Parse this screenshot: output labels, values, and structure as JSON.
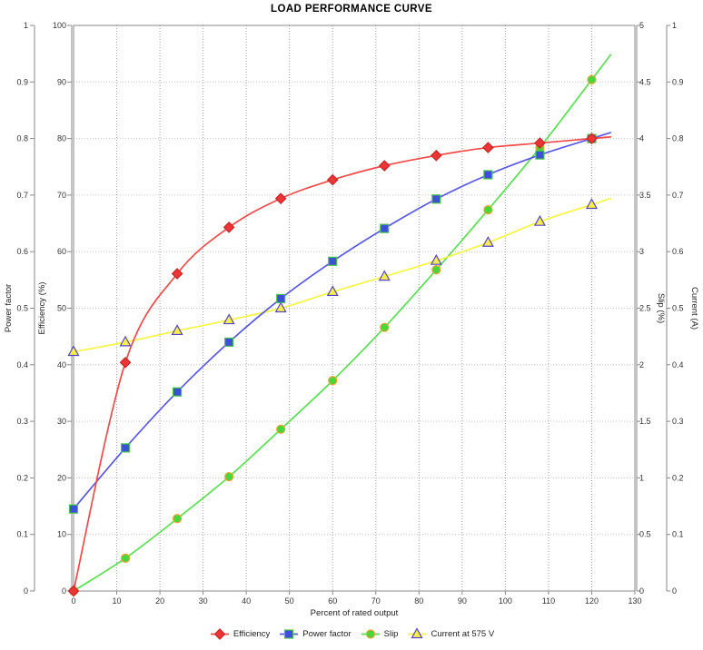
{
  "title": "LOAD PERFORMANCE CURVE",
  "chart_data": {
    "type": "line",
    "title": "LOAD PERFORMANCE CURVE",
    "xlabel": "Percent of rated output",
    "grid": true,
    "legend_position": "bottom",
    "x": [
      0,
      12,
      24,
      36,
      48,
      60,
      72,
      84,
      96,
      108,
      120
    ],
    "axes": {
      "x": {
        "label": "Percent of rated output",
        "min": 0,
        "max": 130,
        "tick_step": 10
      },
      "left_outer": {
        "label": "Power factor",
        "min": 0,
        "max": 1,
        "tick_step": 0.1
      },
      "left_inner": {
        "label": "Efficiency (%)",
        "min": 0,
        "max": 100,
        "tick_step": 10
      },
      "right_inner": {
        "label": "Slip (%)",
        "min": 0,
        "max": 5,
        "tick_step": 0.5
      },
      "right_outer": {
        "label": "Current (A)",
        "min": 0,
        "max": 1,
        "tick_step": 0.1
      }
    },
    "series": [
      {
        "name": "Efficiency",
        "axis": "left_inner",
        "marker": "diamond",
        "line_color": "#f24a4a",
        "marker_fill": "#ee3535",
        "marker_stroke": "#c42626",
        "values": [
          0,
          40.4,
          56.1,
          64.3,
          69.4,
          72.7,
          75.2,
          77.0,
          78.4,
          79.2,
          80.0
        ]
      },
      {
        "name": "Power factor",
        "axis": "left_outer",
        "marker": "square",
        "line_color": "#5858e8",
        "marker_fill": "#3b4fd8",
        "marker_stroke": "#4cc24c",
        "values": [
          0.145,
          0.253,
          0.352,
          0.44,
          0.517,
          0.583,
          0.641,
          0.693,
          0.736,
          0.771,
          0.8
        ]
      },
      {
        "name": "Slip",
        "axis": "right_inner",
        "marker": "circle",
        "line_color": "#58e052",
        "marker_fill": "#45d83c",
        "marker_stroke": "#eea22f",
        "values": [
          0,
          0.29,
          0.64,
          1.01,
          1.43,
          1.86,
          2.33,
          2.84,
          3.37,
          3.92,
          4.52
        ]
      },
      {
        "name": "Current at 575 V",
        "axis": "right_outer",
        "marker": "triangle",
        "line_color": "#f5f542",
        "marker_fill": "#f7ee4d",
        "marker_stroke": "#5646c6",
        "values": [
          0.423,
          0.44,
          0.46,
          0.479,
          0.5,
          0.529,
          0.556,
          0.584,
          0.616,
          0.653,
          0.683
        ]
      }
    ]
  }
}
